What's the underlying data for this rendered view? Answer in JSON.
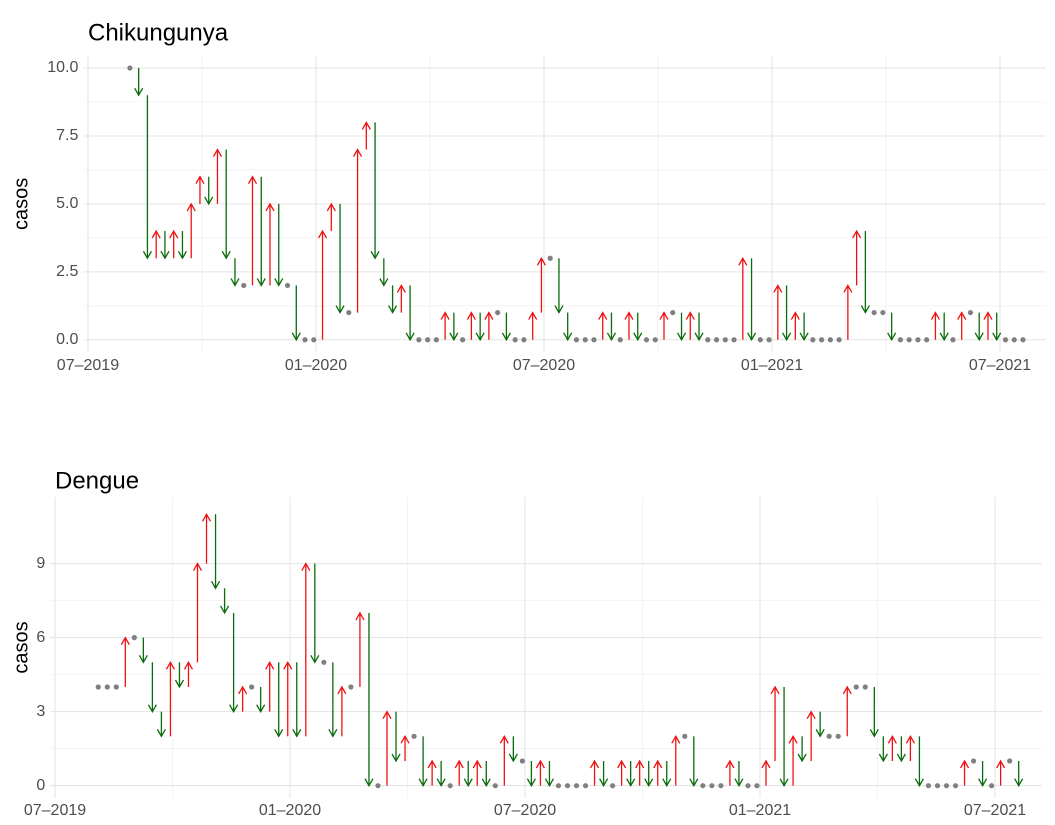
{
  "chart_data": [
    {
      "type": "arrow",
      "title": "Chikungunya",
      "y_label": "casos",
      "up_color": "#ee1111",
      "down_color": "#0a6b0a",
      "same_color": "#808080",
      "grid": true,
      "x": [
        2019.592,
        2019.6112,
        2019.6304,
        2019.6496,
        2019.6688,
        2019.688,
        2019.7072,
        2019.7264,
        2019.7456,
        2019.7648,
        2019.784,
        2019.8032,
        2019.8224,
        2019.8416,
        2019.8608,
        2019.88,
        2019.8992,
        2019.9184,
        2019.9376,
        2019.9568,
        2019.976,
        2019.9952,
        2020.0144,
        2020.0336,
        2020.0528,
        2020.072,
        2020.0912,
        2020.1104,
        2020.1296,
        2020.1488,
        2020.168,
        2020.1872,
        2020.2064,
        2020.2256,
        2020.2448,
        2020.264,
        2020.2832,
        2020.3024,
        2020.3216,
        2020.3408,
        2020.36,
        2020.3792,
        2020.3984,
        2020.4176,
        2020.4368,
        2020.456,
        2020.4752,
        2020.4944,
        2020.5136,
        2020.5328,
        2020.552,
        2020.5712,
        2020.5904,
        2020.6096,
        2020.6288,
        2020.648,
        2020.6672,
        2020.6864,
        2020.7056,
        2020.7248,
        2020.744,
        2020.7632,
        2020.7824,
        2020.8016,
        2020.8208,
        2020.84,
        2020.8592,
        2020.8784,
        2020.8976,
        2020.9168,
        2020.936,
        2020.9552,
        2020.9744,
        2020.9936,
        2021.0128,
        2021.032,
        2021.0512,
        2021.0704,
        2021.0896,
        2021.1088,
        2021.128,
        2021.1472,
        2021.1664,
        2021.1856,
        2021.2048,
        2021.224,
        2021.2432,
        2021.2624,
        2021.2816,
        2021.3008,
        2021.32,
        2021.3392,
        2021.3584,
        2021.3776,
        2021.3968,
        2021.416,
        2021.4352,
        2021.4544,
        2021.4736,
        2021.4928,
        2021.512,
        2021.5312,
        2021.5504
      ],
      "values": [
        10,
        9,
        3,
        4,
        3,
        4,
        3,
        5,
        6,
        5,
        7,
        3,
        2,
        2,
        6,
        2,
        5,
        2,
        2,
        0,
        0,
        0,
        4,
        5,
        1,
        1,
        7,
        8,
        3,
        2,
        1,
        2,
        0,
        0,
        0,
        0,
        1,
        0,
        0,
        1,
        0,
        1,
        1,
        0,
        0,
        0,
        1,
        3,
        3,
        1,
        0,
        0,
        0,
        0,
        1,
        0,
        0,
        1,
        0,
        0,
        0,
        1,
        1,
        0,
        1,
        0,
        0,
        0,
        0,
        0,
        3,
        0,
        0,
        0,
        2,
        0,
        1,
        0,
        0,
        0,
        0,
        0,
        2,
        4,
        1,
        1,
        1,
        0,
        0,
        0,
        0,
        0,
        1,
        0,
        0,
        1,
        1,
        0,
        1,
        0,
        0,
        0,
        0
      ],
      "xlim": [
        2019.49,
        2021.6
      ],
      "xticks": [
        {
          "value": 2019.5,
          "label": "07–2019"
        },
        {
          "value": 2020.0,
          "label": "01–2020"
        },
        {
          "value": 2020.5,
          "label": "07–2020"
        },
        {
          "value": 2021.0,
          "label": "01–2021"
        },
        {
          "value": 2021.5,
          "label": "07–2021"
        }
      ],
      "ylim": [
        -0.45,
        10.45
      ],
      "yticks": [
        {
          "value": 0,
          "label": "0.0"
        },
        2.5,
        {
          "value": 5,
          "label": "5.0"
        },
        7.5,
        {
          "value": 10,
          "label": "10.0"
        }
      ]
    },
    {
      "type": "arrow",
      "title": "Dengue",
      "y_label": "casos",
      "up_color": "#ee1111",
      "down_color": "#0a6b0a",
      "same_color": "#808080",
      "grid": true,
      "x": [
        2019.592,
        2019.6112,
        2019.6304,
        2019.6496,
        2019.6688,
        2019.688,
        2019.7072,
        2019.7264,
        2019.7456,
        2019.7648,
        2019.784,
        2019.8032,
        2019.8224,
        2019.8416,
        2019.8608,
        2019.88,
        2019.8992,
        2019.9184,
        2019.9376,
        2019.9568,
        2019.976,
        2019.9952,
        2020.0144,
        2020.0336,
        2020.0528,
        2020.072,
        2020.0912,
        2020.1104,
        2020.1296,
        2020.1488,
        2020.168,
        2020.1872,
        2020.2064,
        2020.2256,
        2020.2448,
        2020.264,
        2020.2832,
        2020.3024,
        2020.3216,
        2020.3408,
        2020.36,
        2020.3792,
        2020.3984,
        2020.4176,
        2020.4368,
        2020.456,
        2020.4752,
        2020.4944,
        2020.5136,
        2020.5328,
        2020.552,
        2020.5712,
        2020.5904,
        2020.6096,
        2020.6288,
        2020.648,
        2020.6672,
        2020.6864,
        2020.7056,
        2020.7248,
        2020.744,
        2020.7632,
        2020.7824,
        2020.8016,
        2020.8208,
        2020.84,
        2020.8592,
        2020.8784,
        2020.8976,
        2020.9168,
        2020.936,
        2020.9552,
        2020.9744,
        2020.9936,
        2021.0128,
        2021.032,
        2021.0512,
        2021.0704,
        2021.0896,
        2021.1088,
        2021.128,
        2021.1472,
        2021.1664,
        2021.1856,
        2021.2048,
        2021.224,
        2021.2432,
        2021.2624,
        2021.2816,
        2021.3008,
        2021.32,
        2021.3392,
        2021.3584,
        2021.3776,
        2021.3968,
        2021.416,
        2021.4352,
        2021.4544,
        2021.4736,
        2021.4928,
        2021.512,
        2021.5312,
        2021.5504
      ],
      "values": [
        4,
        4,
        4,
        6,
        6,
        5,
        3,
        2,
        5,
        4,
        5,
        9,
        11,
        8,
        7,
        3,
        4,
        4,
        3,
        5,
        2,
        5,
        2,
        9,
        5,
        5,
        2,
        4,
        4,
        7,
        0,
        0,
        3,
        1,
        2,
        2,
        0,
        1,
        0,
        0,
        1,
        0,
        1,
        0,
        0,
        2,
        1,
        1,
        0,
        1,
        0,
        0,
        0,
        0,
        0,
        1,
        0,
        0,
        1,
        0,
        1,
        0,
        1,
        0,
        2,
        2,
        0,
        0,
        0,
        0,
        1,
        0,
        0,
        0,
        1,
        4,
        0,
        2,
        1,
        3,
        2,
        2,
        2,
        4,
        4,
        4,
        2,
        1,
        2,
        1,
        2,
        0,
        0,
        0,
        0,
        0,
        1,
        1,
        0,
        0,
        1,
        1,
        0
      ],
      "xlim": [
        2019.49,
        2021.6
      ],
      "xticks": [
        {
          "value": 2019.5,
          "label": "07–2019"
        },
        {
          "value": 2020.0,
          "label": "01–2020"
        },
        {
          "value": 2020.5,
          "label": "07–2020"
        },
        {
          "value": 2021.0,
          "label": "01–2021"
        },
        {
          "value": 2021.5,
          "label": "07–2021"
        }
      ],
      "ylim": [
        -0.5,
        11.7
      ],
      "yticks": [
        0,
        3,
        6,
        9
      ]
    }
  ]
}
